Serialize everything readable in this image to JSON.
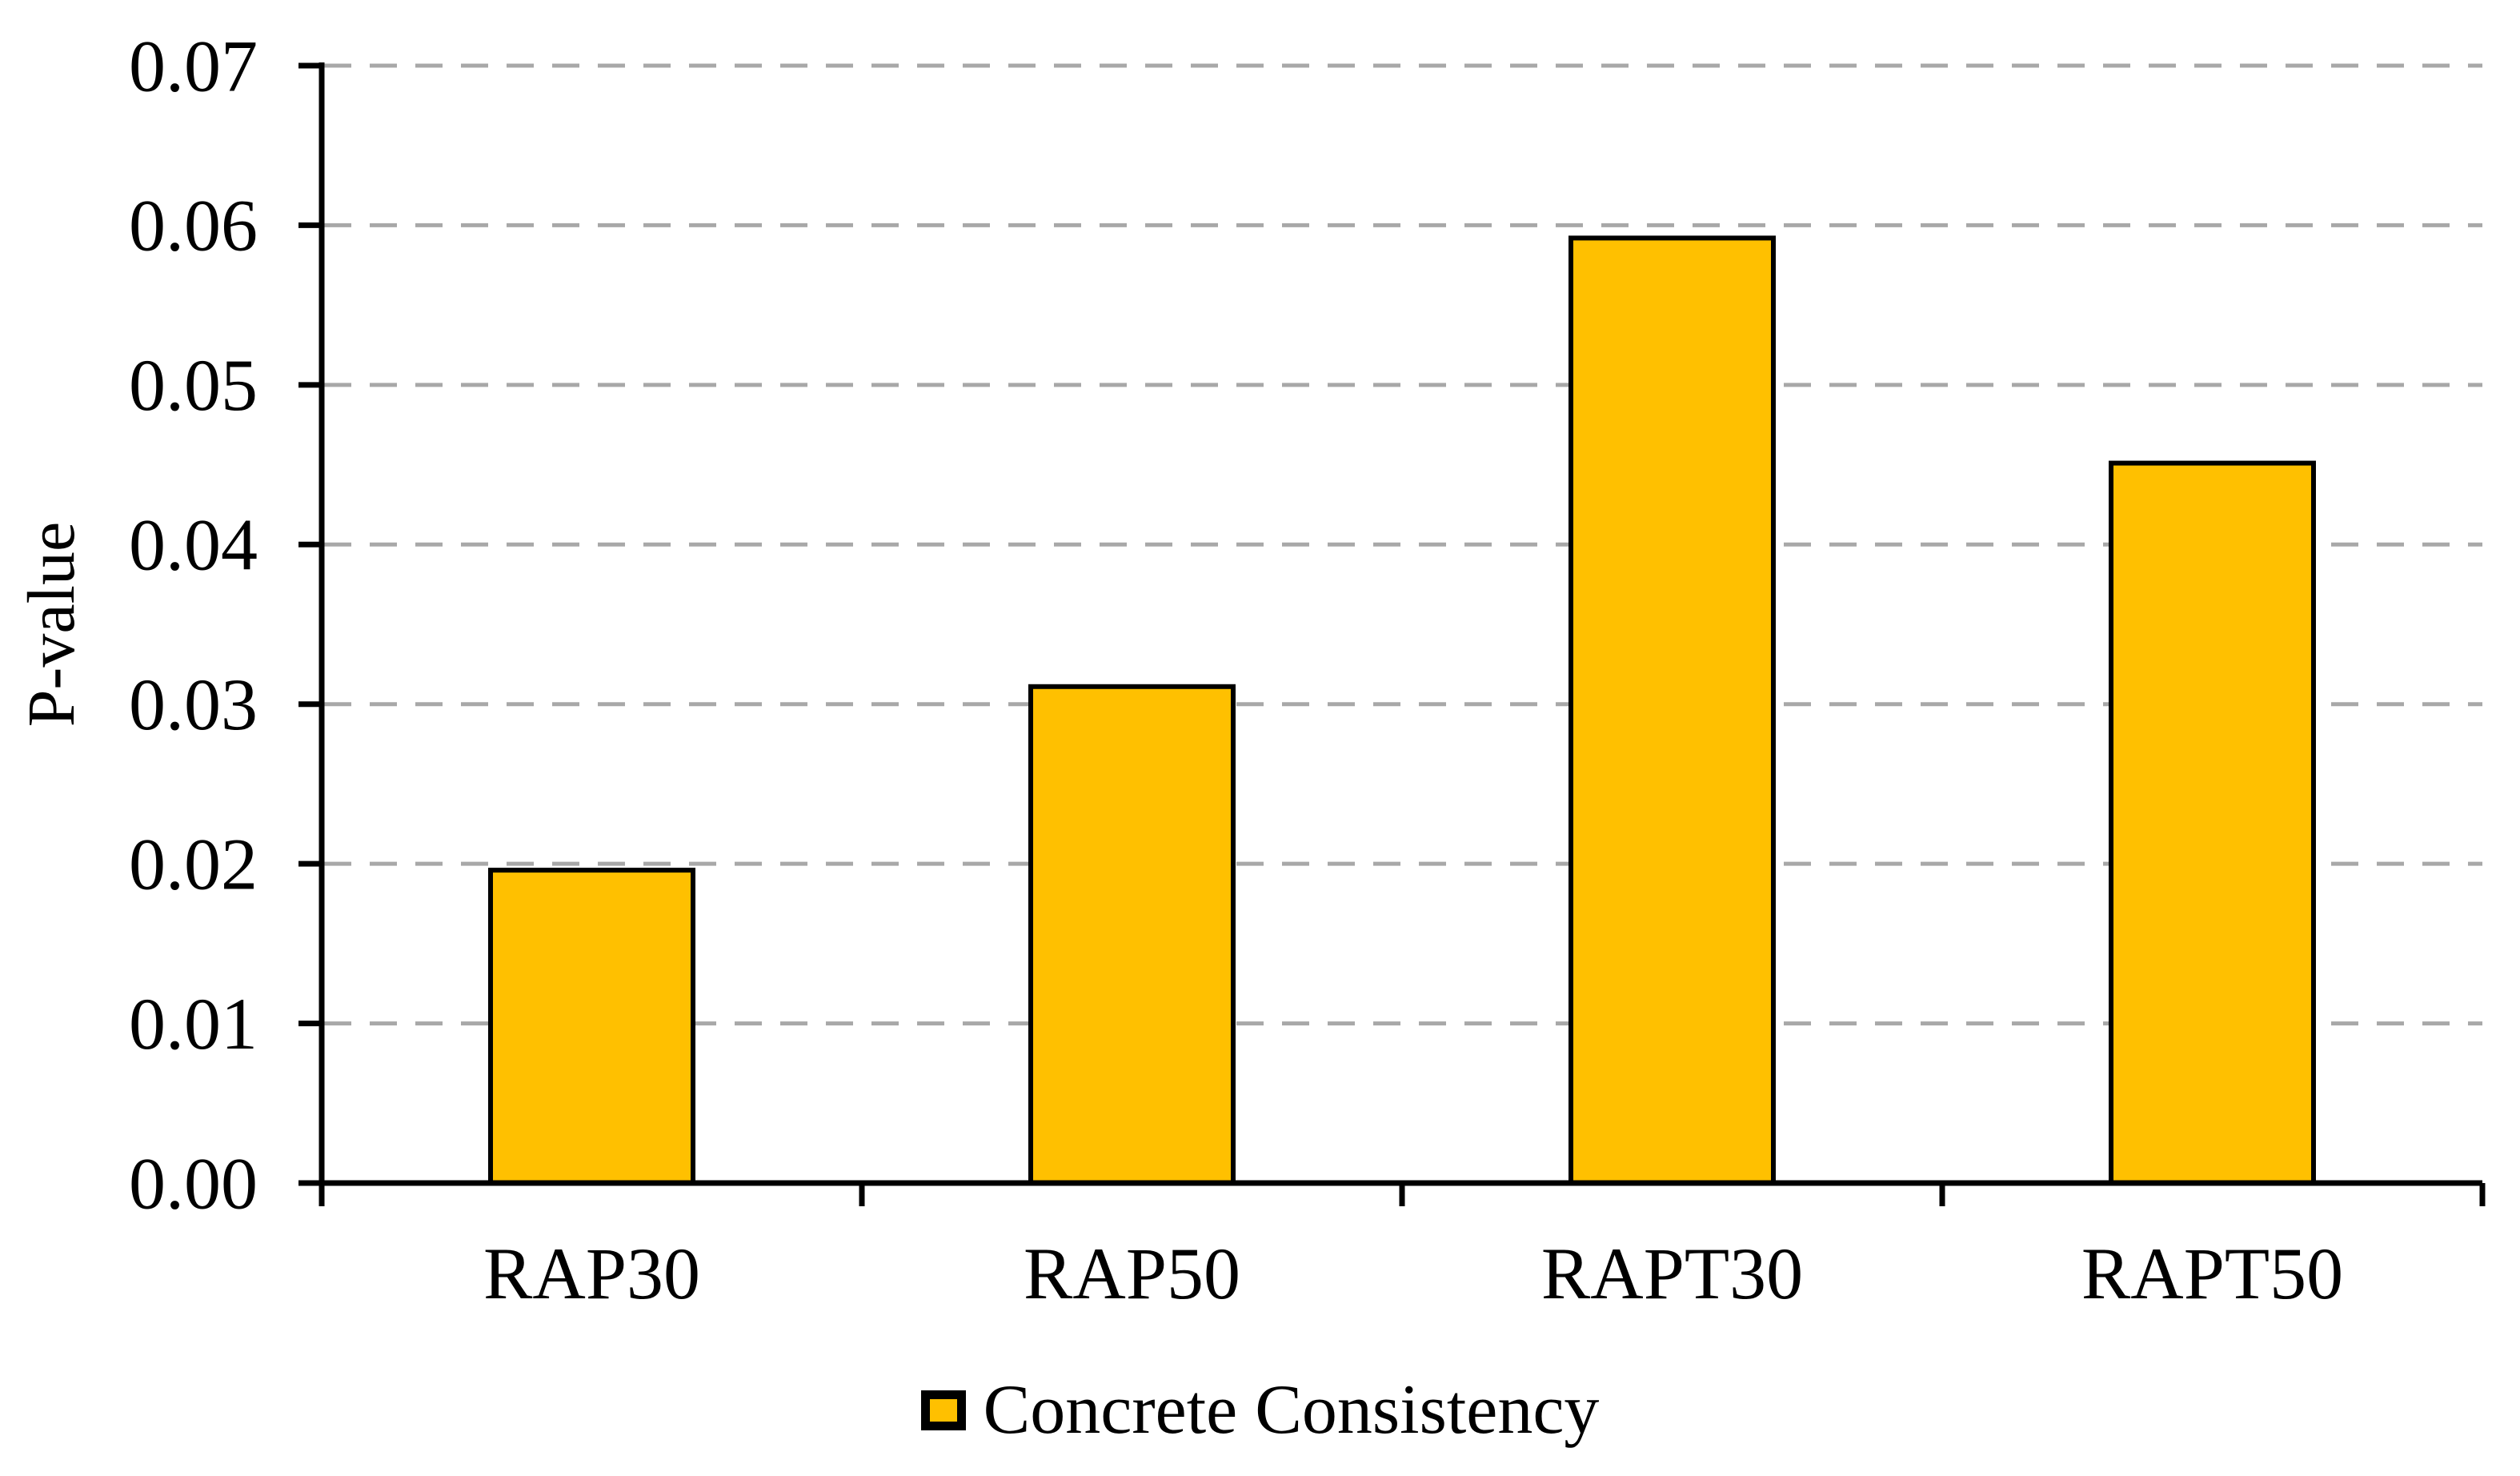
{
  "chart_data": {
    "type": "bar",
    "title": "",
    "xlabel": "",
    "ylabel": "P-value",
    "categories": [
      "RAP30",
      "RAP50",
      "RAPT30",
      "RAPT50"
    ],
    "series": [
      {
        "name": "Concrete Consistency",
        "values": [
          0.0196,
          0.0311,
          0.0592,
          0.0451
        ]
      }
    ],
    "ylim": [
      0,
      0.07
    ],
    "ytick_step": 0.01,
    "ytick_labels": [
      "0.00",
      "0.01",
      "0.02",
      "0.03",
      "0.04",
      "0.05",
      "0.06",
      "0.07"
    ],
    "grid": "horizontal-dashed",
    "legend_position": "bottom-center",
    "colors": {
      "bar_fill": "#FFC000",
      "bar_border": "#000000",
      "gridline": "#A8A8A8",
      "axis": "#000000",
      "text": "#000000",
      "background": "#FFFFFF"
    }
  }
}
